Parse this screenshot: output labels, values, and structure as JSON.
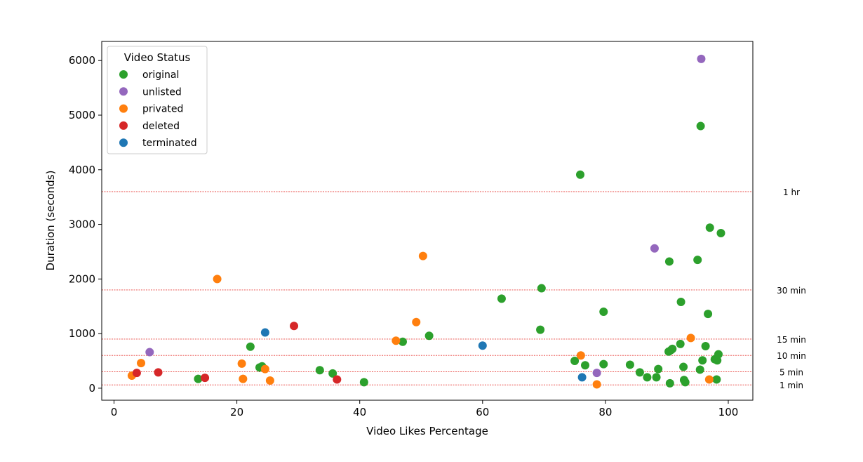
{
  "chart_data": {
    "type": "scatter",
    "xlabel": "Video Likes Percentage",
    "ylabel": "Duration (seconds)",
    "xlim": [
      -2,
      104
    ],
    "ylim": [
      -220,
      6350
    ],
    "xticks": [
      0,
      20,
      40,
      60,
      80,
      100
    ],
    "yticks": [
      0,
      1000,
      2000,
      3000,
      4000,
      5000,
      6000
    ],
    "grid": false,
    "legend": {
      "title": "Video Status",
      "placement": "top-left"
    },
    "reference_lines": [
      {
        "y": 3600,
        "label": "1 hr"
      },
      {
        "y": 1800,
        "label": "30 min"
      },
      {
        "y": 900,
        "label": "15 min"
      },
      {
        "y": 600,
        "label": "10 min"
      },
      {
        "y": 300,
        "label": "5 min"
      },
      {
        "y": 60,
        "label": "1 min"
      }
    ],
    "reference_line_color": "#e8413c",
    "series": [
      {
        "name": "original",
        "color": "#2ca02c",
        "points": [
          [
            13.7,
            170
          ],
          [
            22.2,
            760
          ],
          [
            23.7,
            380
          ],
          [
            24.1,
            400
          ],
          [
            33.5,
            330
          ],
          [
            35.6,
            270
          ],
          [
            40.7,
            110
          ],
          [
            47.0,
            850
          ],
          [
            51.3,
            960
          ],
          [
            63.1,
            1640
          ],
          [
            69.4,
            1070
          ],
          [
            69.6,
            1830
          ],
          [
            75.0,
            500
          ],
          [
            75.9,
            3910
          ],
          [
            76.7,
            420
          ],
          [
            79.7,
            440
          ],
          [
            79.7,
            1400
          ],
          [
            84.0,
            430
          ],
          [
            85.6,
            290
          ],
          [
            86.8,
            200
          ],
          [
            88.3,
            200
          ],
          [
            88.6,
            350
          ],
          [
            90.3,
            670
          ],
          [
            90.5,
            90
          ],
          [
            90.7,
            700
          ],
          [
            90.9,
            720
          ],
          [
            90.4,
            2320
          ],
          [
            92.2,
            810
          ],
          [
            92.3,
            1580
          ],
          [
            92.7,
            390
          ],
          [
            92.8,
            150
          ],
          [
            93.0,
            110
          ],
          [
            95.0,
            2350
          ],
          [
            95.4,
            340
          ],
          [
            95.5,
            4800
          ],
          [
            95.8,
            510
          ],
          [
            96.3,
            770
          ],
          [
            96.7,
            1360
          ],
          [
            97.0,
            2940
          ],
          [
            97.8,
            530
          ],
          [
            98.1,
            520
          ],
          [
            98.1,
            160
          ],
          [
            98.2,
            510
          ],
          [
            98.4,
            620
          ],
          [
            98.8,
            2840
          ]
        ]
      },
      {
        "name": "unlisted",
        "color": "#9467bd",
        "points": [
          [
            5.8,
            660
          ],
          [
            78.6,
            280
          ],
          [
            88.0,
            2560
          ],
          [
            95.6,
            6030
          ]
        ]
      },
      {
        "name": "privated",
        "color": "#ff7f0e",
        "points": [
          [
            2.9,
            230
          ],
          [
            4.4,
            460
          ],
          [
            16.8,
            2000
          ],
          [
            20.8,
            450
          ],
          [
            21.0,
            170
          ],
          [
            24.6,
            350
          ],
          [
            25.4,
            140
          ],
          [
            45.9,
            870
          ],
          [
            49.2,
            1210
          ],
          [
            50.3,
            2420
          ],
          [
            76.0,
            600
          ],
          [
            78.6,
            70
          ],
          [
            93.9,
            920
          ],
          [
            96.9,
            160
          ]
        ]
      },
      {
        "name": "deleted",
        "color": "#d62728",
        "points": [
          [
            3.7,
            280
          ],
          [
            7.2,
            290
          ],
          [
            14.8,
            190
          ],
          [
            29.3,
            1140
          ],
          [
            36.3,
            160
          ]
        ]
      },
      {
        "name": "terminated",
        "color": "#1f77b4",
        "points": [
          [
            24.6,
            1020
          ],
          [
            60.0,
            780
          ],
          [
            76.2,
            200
          ]
        ]
      }
    ]
  }
}
